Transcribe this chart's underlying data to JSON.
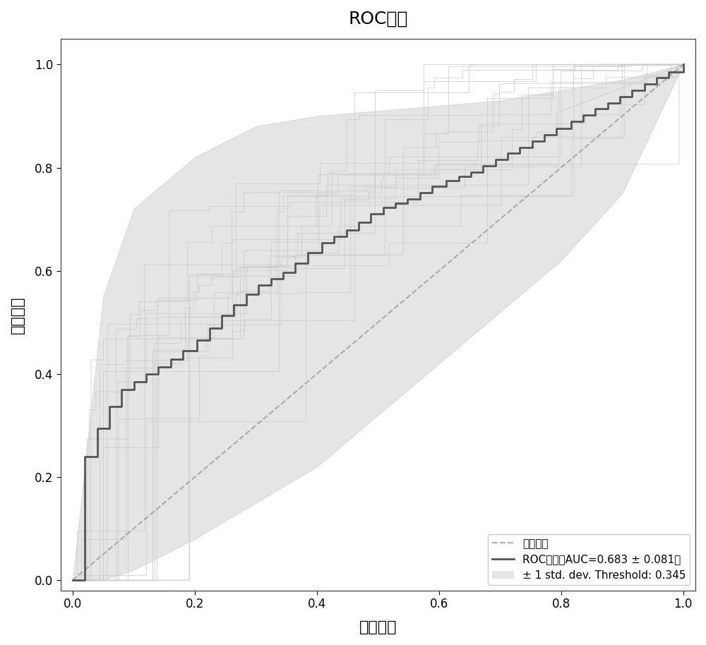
{
  "title": "ROC曲线",
  "xlabel": "假阳性率",
  "ylabel": "真阳性率",
  "random_label": "随机猜测",
  "roc_label": "ROC曲线（AUC=0.683 ± 0.081）",
  "std_label": "± 1 std. dev. Threshold: 0.345",
  "auc_mean": 0.683,
  "auc_std": 0.081,
  "mean_color": "#555555",
  "shade_color": "#cccccc",
  "individual_color": "#cccccc",
  "diagonal_color": "#aaaaaa",
  "background_color": "#ffffff",
  "n_individual_curves": 20,
  "seed": 42
}
